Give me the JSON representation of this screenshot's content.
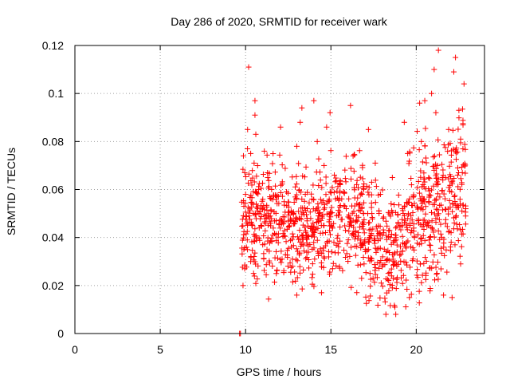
{
  "chart_data": {
    "type": "scatter",
    "title": "Day 286 of 2020, SRMTID for receiver wark",
    "xlabel": "GPS time / hours",
    "ylabel": "SRMTID / TECUs",
    "xlim": [
      0,
      24
    ],
    "ylim": [
      0,
      0.12
    ],
    "x_ticks": [
      0,
      5,
      10,
      15,
      20
    ],
    "x_tick_labels": [
      "0",
      "5",
      "10",
      "15",
      "20"
    ],
    "y_ticks": [
      0,
      0.02,
      0.04,
      0.06,
      0.08,
      0.1,
      0.12
    ],
    "y_tick_labels": [
      "0",
      "0.02",
      "0.04",
      "0.06",
      "0.08",
      "0.1",
      "0.12"
    ],
    "grid": true,
    "marker": "+",
    "colors": {
      "series": "#ff0000",
      "grid": "#a0a0a0",
      "axis": "#000000"
    },
    "data_range_hours": [
      9.75,
      22.9
    ],
    "data_gap_hours": [
      9.65,
      9.75
    ],
    "series": [
      {
        "name": "SRMTID",
        "points": [
          [
            9.65,
            0.0
          ],
          [
            9.7,
            0.0
          ],
          [
            10.18,
            0.111
          ],
          [
            10.55,
            0.097
          ],
          [
            10.55,
            0.091
          ],
          [
            10.12,
            0.085
          ],
          [
            10.6,
            0.083
          ],
          [
            10.5,
            0.071
          ],
          [
            10.3,
            0.075
          ],
          [
            9.95,
            0.067
          ],
          [
            10.0,
            0.058
          ],
          [
            9.9,
            0.053
          ],
          [
            10.2,
            0.049
          ],
          [
            10.4,
            0.045
          ],
          [
            10.1,
            0.039
          ],
          [
            9.9,
            0.035
          ],
          [
            10.3,
            0.03
          ],
          [
            9.95,
            0.027
          ],
          [
            9.85,
            0.02
          ],
          [
            10.7,
            0.052
          ],
          [
            10.8,
            0.044
          ],
          [
            11.3,
            0.065
          ],
          [
            11.6,
            0.041
          ],
          [
            11.8,
            0.025
          ],
          [
            12.05,
            0.086
          ],
          [
            12.4,
            0.059
          ],
          [
            12.8,
            0.047
          ],
          [
            12.75,
            0.031
          ],
          [
            13.3,
            0.094
          ],
          [
            13.2,
            0.088
          ],
          [
            13.0,
            0.078
          ],
          [
            13.5,
            0.058
          ],
          [
            13.3,
            0.041
          ],
          [
            13.0,
            0.016
          ],
          [
            14.0,
            0.097
          ],
          [
            14.2,
            0.08
          ],
          [
            14.6,
            0.07
          ],
          [
            14.3,
            0.05
          ],
          [
            14.45,
            0.017
          ],
          [
            14.95,
            0.092
          ],
          [
            14.75,
            0.086
          ],
          [
            15.2,
            0.066
          ],
          [
            15.0,
            0.045
          ],
          [
            15.1,
            0.027
          ],
          [
            15.55,
            0.062
          ],
          [
            15.9,
            0.052
          ],
          [
            16.15,
            0.095
          ],
          [
            16.3,
            0.074
          ],
          [
            16.5,
            0.049
          ],
          [
            16.8,
            0.023
          ],
          [
            17.2,
            0.085
          ],
          [
            17.6,
            0.071
          ],
          [
            17.4,
            0.05
          ],
          [
            17.2,
            0.035
          ],
          [
            17.9,
            0.058
          ],
          [
            18.1,
            0.042
          ],
          [
            18.3,
            0.031
          ],
          [
            18.6,
            0.019
          ],
          [
            18.75,
            0.011
          ],
          [
            18.8,
            0.008
          ],
          [
            18.6,
            0.065
          ],
          [
            19.1,
            0.045
          ],
          [
            19.3,
            0.088
          ],
          [
            19.5,
            0.075
          ],
          [
            19.6,
            0.015
          ],
          [
            19.9,
            0.04
          ],
          [
            20.2,
            0.096
          ],
          [
            20.5,
            0.097
          ],
          [
            20.3,
            0.08
          ],
          [
            20.4,
            0.062
          ],
          [
            20.7,
            0.045
          ],
          [
            20.9,
            0.1
          ],
          [
            21.05,
            0.11
          ],
          [
            21.15,
            0.092
          ],
          [
            21.3,
            0.118
          ],
          [
            21.25,
            0.07
          ],
          [
            21.5,
            0.04
          ],
          [
            21.6,
            0.016
          ],
          [
            21.9,
            0.085
          ],
          [
            22.1,
            0.015
          ],
          [
            22.2,
            0.109
          ],
          [
            22.3,
            0.115
          ],
          [
            22.5,
            0.093
          ],
          [
            22.6,
            0.081
          ],
          [
            22.8,
            0.104
          ],
          [
            22.7,
            0.067
          ],
          [
            22.6,
            0.029
          ],
          [
            22.9,
            0.052
          ]
        ]
      }
    ]
  }
}
